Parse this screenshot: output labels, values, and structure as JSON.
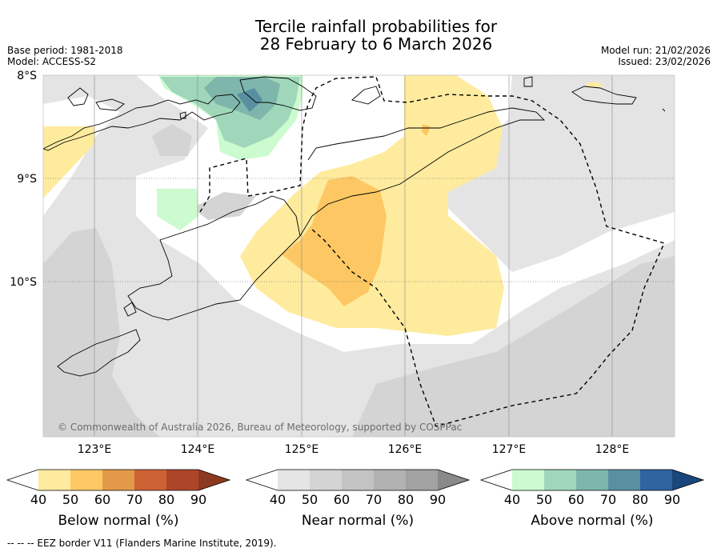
{
  "header": {
    "title_line1": "Tercile rainfall probabilities for",
    "title_line2": "28 February to 6 March 2026",
    "base_period": "Base period: 1981-2018",
    "model": "Model: ACCESS-S2",
    "model_run": "Model run: 21/02/2026",
    "issued": "Issued: 23/02/2026"
  },
  "map": {
    "lat_labels": [
      "8°S",
      "9°S",
      "10°S"
    ],
    "lon_labels": [
      "123°E",
      "124°E",
      "125°E",
      "126°E",
      "127°E",
      "128°E"
    ],
    "copyright": "© Commonwealth of Australia 2026, Bureau of Meteorology, supported by COSPPac"
  },
  "legends": [
    {
      "label": "Below normal (%)",
      "ticks": [
        "40",
        "50",
        "60",
        "70",
        "80",
        "90"
      ],
      "colors": [
        "#ffffff",
        "#feeb9e",
        "#fdc864",
        "#e39a48",
        "#cd6234",
        "#ad4629",
        "#8c3a1f"
      ]
    },
    {
      "label": "Near normal (%)",
      "ticks": [
        "40",
        "50",
        "60",
        "70",
        "80",
        "90"
      ],
      "colors": [
        "#ffffff",
        "#e4e4e4",
        "#d4d4d4",
        "#c3c3c3",
        "#b2b2b2",
        "#a2a2a2",
        "#898989"
      ]
    },
    {
      "label": "Above normal (%)",
      "ticks": [
        "40",
        "50",
        "60",
        "70",
        "80",
        "90"
      ],
      "colors": [
        "#ffffff",
        "#cbfbcf",
        "#a0d7bb",
        "#7eb6ab",
        "#5890a2",
        "#2e64a0",
        "#19477a"
      ]
    }
  ],
  "footnote": "--  --  -- EEZ border V11 (Flanders Marine Institute, 2019)."
}
